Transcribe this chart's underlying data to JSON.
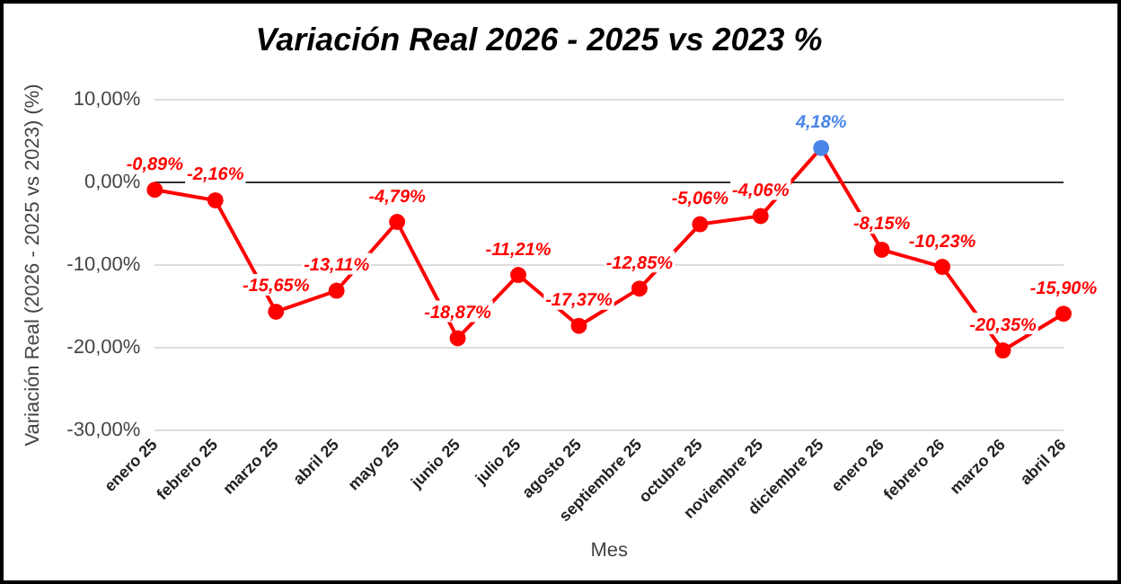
{
  "chart_data": {
    "type": "line",
    "title": "Variación Real 2026 - 2025 vs 2023 %",
    "xlabel": "Mes",
    "ylabel": "Variación Real (2026 - 2025 vs 2023) (%)",
    "categories": [
      "enero 25",
      "febrero 25",
      "marzo 25",
      "abril 25",
      "mayo 25",
      "junio 25",
      "julio 25",
      "agosto 25",
      "septiembre 25",
      "octubre 25",
      "noviembre 25",
      "diciembre 25",
      "enero 26",
      "febrero 26",
      "marzo 26",
      "abril 26"
    ],
    "values": [
      -0.89,
      -2.16,
      -15.65,
      -13.11,
      -4.79,
      -18.87,
      -11.21,
      -17.37,
      -12.85,
      -5.06,
      -4.06,
      4.18,
      -8.15,
      -10.23,
      -20.35,
      -15.9
    ],
    "value_labels": [
      "-0,89%",
      "-2,16%",
      "-15,65%",
      "-13,11%",
      "-4,79%",
      "-18,87%",
      "-11,21%",
      "-17,37%",
      "-12,85%",
      "-5,06%",
      "-4,06%",
      "4,18%",
      "-8,15%",
      "-10,23%",
      "-20,35%",
      "-15,90%"
    ],
    "color": "#ff0000",
    "colors": [
      "#ff0000",
      "#ff0000",
      "#ff0000",
      "#ff0000",
      "#ff0000",
      "#ff0000",
      "#ff0000",
      "#ff0000",
      "#ff0000",
      "#ff0000",
      "#ff0000",
      "#4a86e8",
      "#ff0000",
      "#ff0000",
      "#ff0000",
      "#ff0000"
    ],
    "ylim": [
      -30,
      10
    ],
    "yticks": [
      {
        "value": 10,
        "label": "10,00%"
      },
      {
        "value": 0,
        "label": "0,00%"
      },
      {
        "value": -10,
        "label": "-10,00%"
      },
      {
        "value": -20,
        "label": "-20,00%"
      },
      {
        "value": -30,
        "label": "-30,00%"
      }
    ],
    "grid": "y",
    "marker": "circle",
    "line_style": "solid",
    "legend": false
  }
}
